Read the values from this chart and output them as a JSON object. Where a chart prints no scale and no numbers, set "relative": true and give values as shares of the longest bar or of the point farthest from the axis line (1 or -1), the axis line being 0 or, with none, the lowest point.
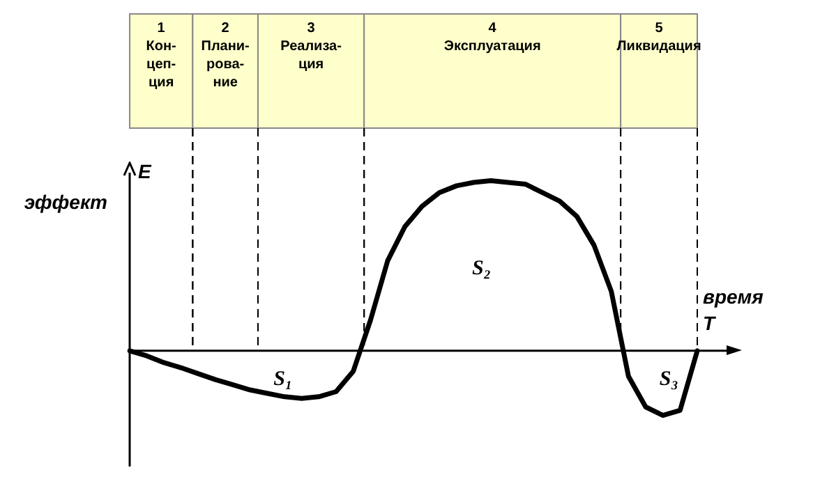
{
  "chart_data": {
    "type": "line",
    "relative": true,
    "xlabel": "время\nT",
    "ylabel": "E\nэффект",
    "legend": false,
    "marker": "none",
    "line_style": "solid",
    "categories": [
      null,
      null,
      null,
      null,
      null,
      null,
      null,
      null,
      null,
      null,
      null,
      null,
      null,
      null,
      null,
      null,
      null,
      null,
      null,
      null,
      null,
      null,
      null,
      null,
      null,
      null,
      null,
      null,
      null,
      null,
      null,
      null,
      null,
      null
    ],
    "series": [
      {
        "color": "#000000",
        "values": [
          0,
          -0.03,
          -0.07,
          -0.1,
          -0.135,
          -0.17,
          -0.2,
          -0.23,
          -0.25,
          -0.27,
          -0.28,
          -0.27,
          -0.24,
          -0.12,
          0.18,
          0.53,
          0.73,
          0.85,
          0.93,
          0.97,
          0.99,
          1,
          0.99,
          0.98,
          0.93,
          0.88,
          0.79,
          0.62,
          0.35,
          -0.15,
          -0.33,
          -0.38,
          -0.35,
          0
        ]
      }
    ],
    "annotations": [
      "1\nКон-\nцеп-\nция",
      "2\nПлани-\nрова-\nние",
      "3\nРеализа-\nция",
      "4\nЭксплуатация",
      "5\nЛиквидация",
      "S₁",
      "S₂",
      "S₃"
    ]
  }
}
